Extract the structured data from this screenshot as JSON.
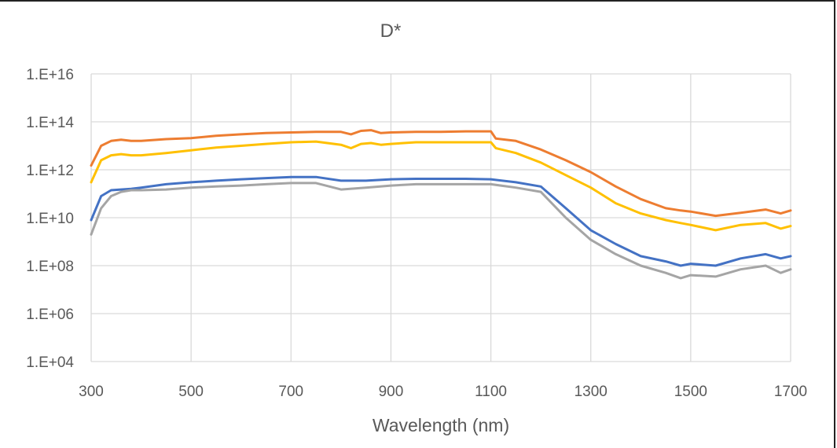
{
  "chart_data": {
    "type": "line",
    "title": "D*",
    "xlabel": "Wavelength (nm)",
    "ylabel": "",
    "xlim": [
      300,
      1700
    ],
    "ylim_log10": [
      4,
      16
    ],
    "y_scale": "log",
    "grid": true,
    "x_ticks": [
      300,
      500,
      700,
      900,
      1100,
      1300,
      1500,
      1700
    ],
    "x_tick_labels": [
      "300",
      "500",
      "700",
      "900",
      "1100",
      "1300",
      "1500",
      "1700"
    ],
    "y_ticks_log10": [
      4,
      6,
      8,
      10,
      12,
      14,
      16
    ],
    "y_tick_labels": [
      "1.E+04",
      "1.E+06",
      "1.E+08",
      "1.E+10",
      "1.E+12",
      "1.E+14",
      "1.E+16"
    ],
    "series": [
      {
        "color": "#ED7D31",
        "x": [
          300,
          320,
          340,
          360,
          380,
          400,
          450,
          500,
          550,
          600,
          650,
          700,
          750,
          800,
          820,
          840,
          860,
          880,
          900,
          950,
          1000,
          1050,
          1100,
          1110,
          1150,
          1200,
          1250,
          1300,
          1350,
          1400,
          1450,
          1480,
          1500,
          1550,
          1600,
          1650,
          1680,
          1700
        ],
        "y": [
          1500000000000.0,
          10000000000000.0,
          16000000000000.0,
          18000000000000.0,
          16000000000000.0,
          16000000000000.0,
          19000000000000.0,
          21000000000000.0,
          26000000000000.0,
          30000000000000.0,
          34000000000000.0,
          36000000000000.0,
          38000000000000.0,
          38000000000000.0,
          30000000000000.0,
          42000000000000.0,
          45000000000000.0,
          34000000000000.0,
          36000000000000.0,
          38000000000000.0,
          38000000000000.0,
          40000000000000.0,
          40000000000000.0,
          20000000000000.0,
          16000000000000.0,
          7000000000000.0,
          2500000000000.0,
          800000000000.0,
          200000000000.0,
          60000000000.0,
          25000000000.0,
          20000000000.0,
          18000000000.0,
          12000000000.0,
          16000000000.0,
          22000000000.0,
          15000000000.0,
          20000000000.0
        ]
      },
      {
        "color": "#FFC000",
        "x": [
          300,
          320,
          340,
          360,
          380,
          400,
          450,
          500,
          550,
          600,
          650,
          700,
          750,
          800,
          820,
          840,
          860,
          880,
          900,
          950,
          1000,
          1050,
          1100,
          1110,
          1150,
          1200,
          1250,
          1300,
          1350,
          1400,
          1450,
          1480,
          1500,
          1550,
          1600,
          1650,
          1680,
          1700
        ],
        "y": [
          300000000000.0,
          2500000000000.0,
          4000000000000.0,
          4500000000000.0,
          4000000000000.0,
          4000000000000.0,
          5000000000000.0,
          6500000000000.0,
          8500000000000.0,
          10000000000000.0,
          12000000000000.0,
          14000000000000.0,
          15000000000000.0,
          11000000000000.0,
          8000000000000.0,
          12000000000000.0,
          13000000000000.0,
          11000000000000.0,
          12000000000000.0,
          14000000000000.0,
          14000000000000.0,
          14000000000000.0,
          14000000000000.0,
          8000000000000.0,
          5000000000000.0,
          2000000000000.0,
          600000000000.0,
          180000000000.0,
          40000000000.0,
          15000000000.0,
          8000000000.0,
          6000000000.0,
          5000000000.0,
          3000000000.0,
          5000000000.0,
          6000000000.0,
          3500000000.0,
          4500000000.0
        ]
      },
      {
        "color": "#4472C4",
        "x": [
          300,
          320,
          340,
          360,
          380,
          400,
          450,
          500,
          550,
          600,
          650,
          700,
          750,
          800,
          850,
          900,
          950,
          1000,
          1050,
          1100,
          1150,
          1200,
          1250,
          1300,
          1350,
          1400,
          1450,
          1480,
          1500,
          1550,
          1600,
          1650,
          1680,
          1700
        ],
        "y": [
          8000000000.0,
          80000000000.0,
          140000000000.0,
          150000000000.0,
          160000000000.0,
          180000000000.0,
          250000000000.0,
          300000000000.0,
          350000000000.0,
          400000000000.0,
          450000000000.0,
          500000000000.0,
          500000000000.0,
          350000000000.0,
          350000000000.0,
          400000000000.0,
          420000000000.0,
          420000000000.0,
          420000000000.0,
          400000000000.0,
          300000000000.0,
          200000000000.0,
          25000000000.0,
          3000000000.0,
          800000000.0,
          250000000.0,
          150000000.0,
          100000000.0,
          120000000.0,
          100000000.0,
          200000000.0,
          300000000.0,
          200000000.0,
          250000000.0
        ]
      },
      {
        "color": "#A5A5A5",
        "x": [
          300,
          320,
          340,
          360,
          380,
          400,
          450,
          500,
          550,
          600,
          650,
          700,
          750,
          800,
          850,
          900,
          950,
          1000,
          1050,
          1100,
          1150,
          1200,
          1250,
          1300,
          1350,
          1400,
          1450,
          1480,
          1500,
          1550,
          1600,
          1650,
          1680,
          1700
        ],
        "y": [
          2000000000.0,
          25000000000.0,
          80000000000.0,
          120000000000.0,
          140000000000.0,
          140000000000.0,
          150000000000.0,
          180000000000.0,
          200000000000.0,
          220000000000.0,
          250000000000.0,
          280000000000.0,
          280000000000.0,
          150000000000.0,
          180000000000.0,
          220000000000.0,
          250000000000.0,
          250000000000.0,
          250000000000.0,
          250000000000.0,
          180000000000.0,
          120000000000.0,
          10000000000.0,
          1200000000.0,
          300000000.0,
          100000000.0,
          50000000.0,
          30000000.0,
          40000000.0,
          35000000.0,
          70000000.0,
          100000000.0,
          50000000.0,
          70000000.0
        ]
      }
    ]
  }
}
